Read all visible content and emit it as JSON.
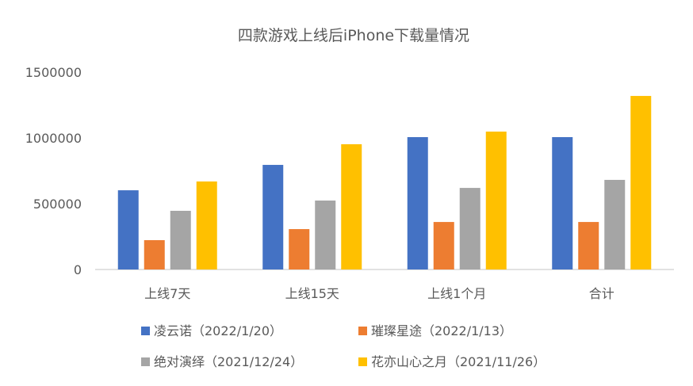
{
  "chart_data": {
    "type": "bar",
    "title": "四款游戏上线后iPhone下载量情况",
    "categories": [
      "上线7天",
      "上线15天",
      "上线1个月",
      "合计"
    ],
    "ylim": [
      0,
      1500000
    ],
    "yticks": [
      "0",
      "500000",
      "1000000",
      "1500000"
    ],
    "grid": false,
    "legend_position": "bottom",
    "series": [
      {
        "name": "凌云诺（2022/1/20）",
        "color": "#4472C4",
        "values": [
          602000,
          795000,
          1006000,
          1006000
        ]
      },
      {
        "name": "璀璨星途（2022/1/13）",
        "color": "#ED7D31",
        "values": [
          223000,
          307000,
          361000,
          361000
        ]
      },
      {
        "name": "绝对演绎（2021/12/24）",
        "color": "#A5A5A5",
        "values": [
          446000,
          524000,
          620000,
          681000
        ]
      },
      {
        "name": "花亦山心之月（2021/11/26）",
        "color": "#FFC000",
        "values": [
          669000,
          952000,
          1048000,
          1319000
        ]
      }
    ]
  }
}
